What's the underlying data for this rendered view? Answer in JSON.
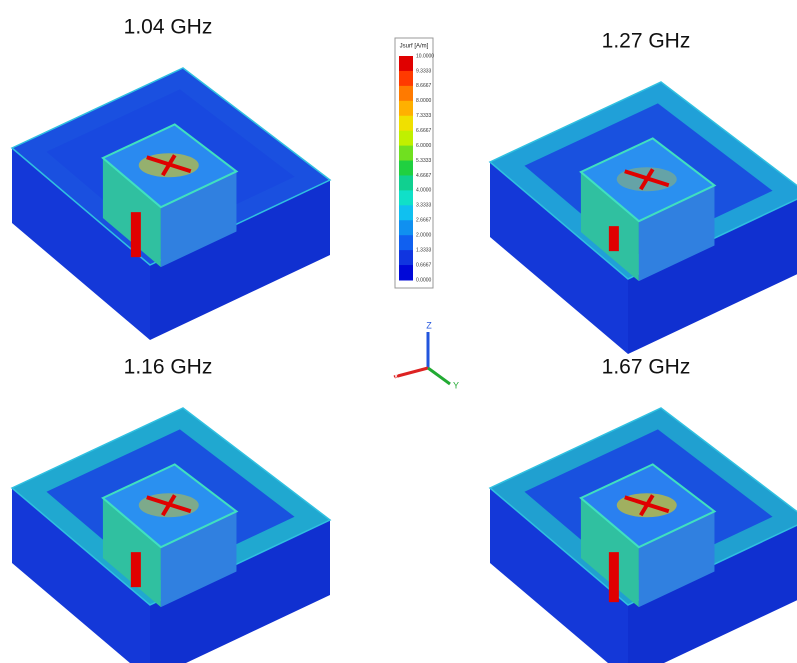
{
  "panels": [
    {
      "label": "1.04 GHz"
    },
    {
      "label": "1.27 GHz"
    },
    {
      "label": "1.16 GHz"
    },
    {
      "label": "1.67 GHz"
    }
  ],
  "colorbar": {
    "title": "Jsurf [A/m]",
    "ticks": [
      "10.0000",
      "9.3333",
      "8.6667",
      "8.0000",
      "7.3333",
      "6.6667",
      "6.0000",
      "5.3333",
      "4.6667",
      "4.0000",
      "3.3333",
      "2.6667",
      "2.0000",
      "1.3333",
      "0.6667",
      "0.0000"
    ]
  },
  "axes": {
    "z": "Z",
    "x": "X",
    "y": "Y"
  }
}
